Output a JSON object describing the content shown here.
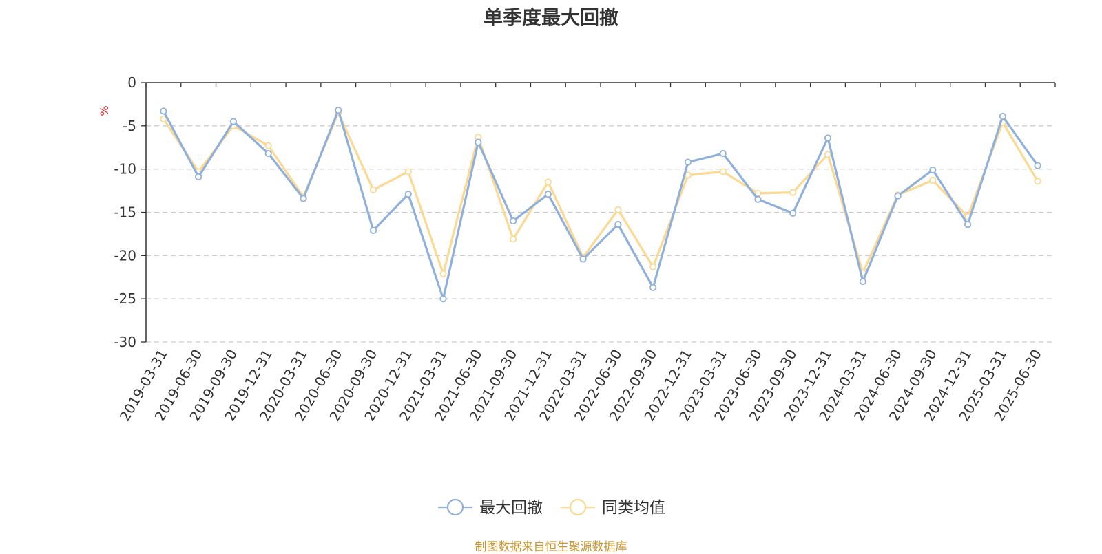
{
  "page": {
    "title": "单季度最大回撤",
    "source_note": "制图数据来自恒生聚源数据库"
  },
  "chart_data": {
    "type": "line",
    "title": "单季度最大回撤",
    "ylabel": "%",
    "xlabel": "",
    "ylim": [
      -30,
      0
    ],
    "yticks": [
      0,
      -5,
      -10,
      -15,
      -20,
      -25,
      -30
    ],
    "grid": true,
    "legend_position": "bottom-center",
    "categories": [
      "2019-03-31",
      "2019-06-30",
      "2019-09-30",
      "2019-12-31",
      "2020-03-31",
      "2020-06-30",
      "2020-09-30",
      "2020-12-31",
      "2021-03-31",
      "2021-06-30",
      "2021-09-30",
      "2021-12-31",
      "2022-03-31",
      "2022-06-30",
      "2022-09-30",
      "2022-12-31",
      "2023-03-31",
      "2023-06-30",
      "2023-09-30",
      "2023-12-31",
      "2024-03-31",
      "2024-06-30",
      "2024-09-30",
      "2024-12-31",
      "2025-03-31",
      "2025-06-30"
    ],
    "series": [
      {
        "name": "最大回撤",
        "color": "#8fb0dc",
        "values": [
          -3.3,
          -10.9,
          -4.5,
          -8.2,
          -13.4,
          -3.2,
          -17.1,
          -12.9,
          -25.0,
          -6.9,
          -16.0,
          -12.9,
          -20.4,
          -16.4,
          -23.7,
          -9.2,
          -8.2,
          -13.5,
          -15.1,
          -6.4,
          -23.0,
          -13.1,
          -10.1,
          -16.4,
          -3.9,
          -9.6
        ]
      },
      {
        "name": "同类均值",
        "color": "#fcd993",
        "values": [
          -4.2,
          -10.3,
          -5.0,
          -7.3,
          -13.2,
          -3.5,
          -12.4,
          -10.3,
          -22.1,
          -6.3,
          -18.1,
          -11.5,
          -20.2,
          -14.7,
          -21.3,
          -10.7,
          -10.3,
          -12.8,
          -12.7,
          -8.3,
          -22.0,
          -13.0,
          -11.3,
          -15.5,
          -4.6,
          -11.4
        ]
      }
    ]
  }
}
